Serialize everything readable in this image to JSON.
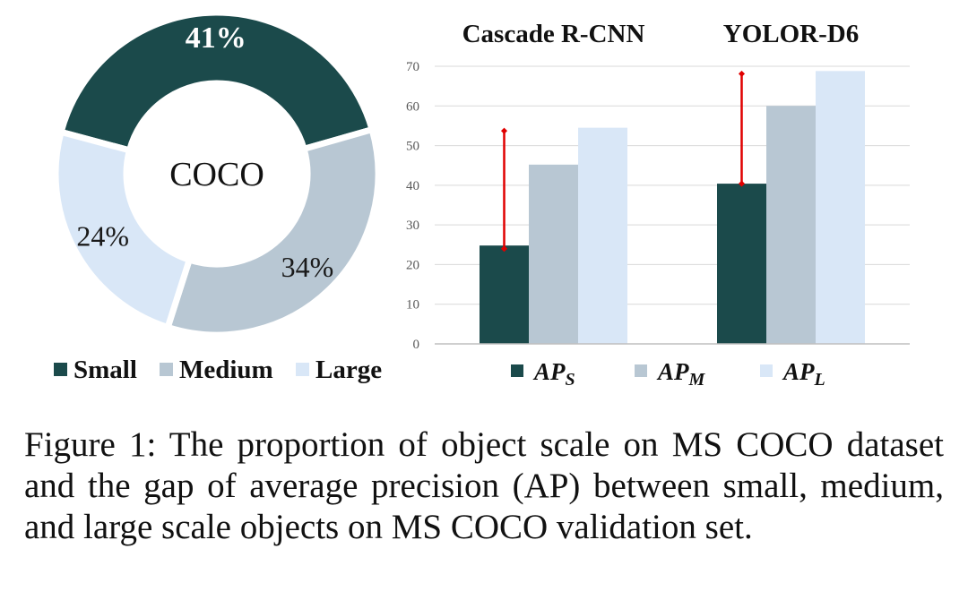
{
  "chart_data": [
    {
      "type": "pie",
      "center_label": "COCO",
      "slices": [
        {
          "name": "Small",
          "value": 41,
          "label": "41%",
          "color": "#1b4a4b"
        },
        {
          "name": "Medium",
          "value": 34,
          "label": "34%",
          "color": "#b8c7d3"
        },
        {
          "name": "Large",
          "value": 24,
          "label": "24%",
          "color": "#d9e7f7"
        }
      ],
      "legend": [
        "Small",
        "Medium",
        "Large"
      ],
      "legend_position": "bottom"
    },
    {
      "type": "bar",
      "categories": [
        "Cascade R-CNN",
        "YOLOR-D6"
      ],
      "series": [
        {
          "name": "AP",
          "sub": "S",
          "color": "#1b4a4b",
          "values": [
            24.8,
            40.4
          ]
        },
        {
          "name": "AP",
          "sub": "M",
          "color": "#b8c7d3",
          "values": [
            45.2,
            60.0
          ]
        },
        {
          "name": "AP",
          "sub": "L",
          "color": "#d9e7f7",
          "values": [
            54.5,
            68.8
          ]
        }
      ],
      "gap_lines": [
        {
          "category": "Cascade R-CNN",
          "from": 24.0,
          "to": 53.7
        },
        {
          "category": "YOLOR-D6",
          "from": 40.4,
          "to": 68.1
        }
      ],
      "gap_color": "#e00000",
      "ylim": [
        0,
        70
      ],
      "yticks": [
        0,
        10,
        20,
        30,
        40,
        50,
        60,
        70
      ],
      "grid": true,
      "legend_position": "bottom"
    }
  ],
  "caption": "Figure 1: The proportion of object scale on MS COCO dataset and the gap of average precision (AP) between small, medium, and large scale objects on MS COCO validation set."
}
